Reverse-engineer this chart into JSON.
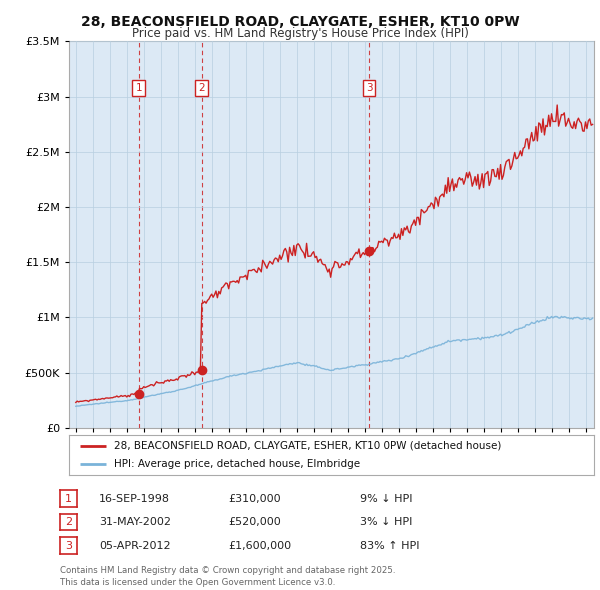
{
  "title": "28, BEACONSFIELD ROAD, CLAYGATE, ESHER, KT10 0PW",
  "subtitle": "Price paid vs. HM Land Registry's House Price Index (HPI)",
  "legend_label_red": "28, BEACONSFIELD ROAD, CLAYGATE, ESHER, KT10 0PW (detached house)",
  "legend_label_blue": "HPI: Average price, detached house, Elmbridge",
  "footer_line1": "Contains HM Land Registry data © Crown copyright and database right 2025.",
  "footer_line2": "This data is licensed under the Open Government Licence v3.0.",
  "transactions": [
    {
      "num": 1,
      "date": "16-SEP-1998",
      "price": "£310,000",
      "pct": "9% ↓ HPI"
    },
    {
      "num": 2,
      "date": "31-MAY-2002",
      "price": "£520,000",
      "pct": "3% ↓ HPI"
    },
    {
      "num": 3,
      "date": "05-APR-2012",
      "price": "£1,600,000",
      "pct": "83% ↑ HPI"
    }
  ],
  "sale_dates": [
    1998.71,
    2002.41,
    2012.26
  ],
  "sale_prices": [
    310000,
    520000,
    1600000
  ],
  "ylim": [
    0,
    3500000
  ],
  "yticks": [
    0,
    500000,
    1000000,
    1500000,
    2000000,
    2500000,
    3000000,
    3500000
  ],
  "xlim_start": 1994.6,
  "xlim_end": 2025.5,
  "hpi_color": "#7ab3d9",
  "price_color": "#cc2222",
  "vline_color": "#cc2222",
  "plot_bg_color": "#dce9f5",
  "background_color": "#ffffff",
  "grid_color": "#b8cfe0"
}
